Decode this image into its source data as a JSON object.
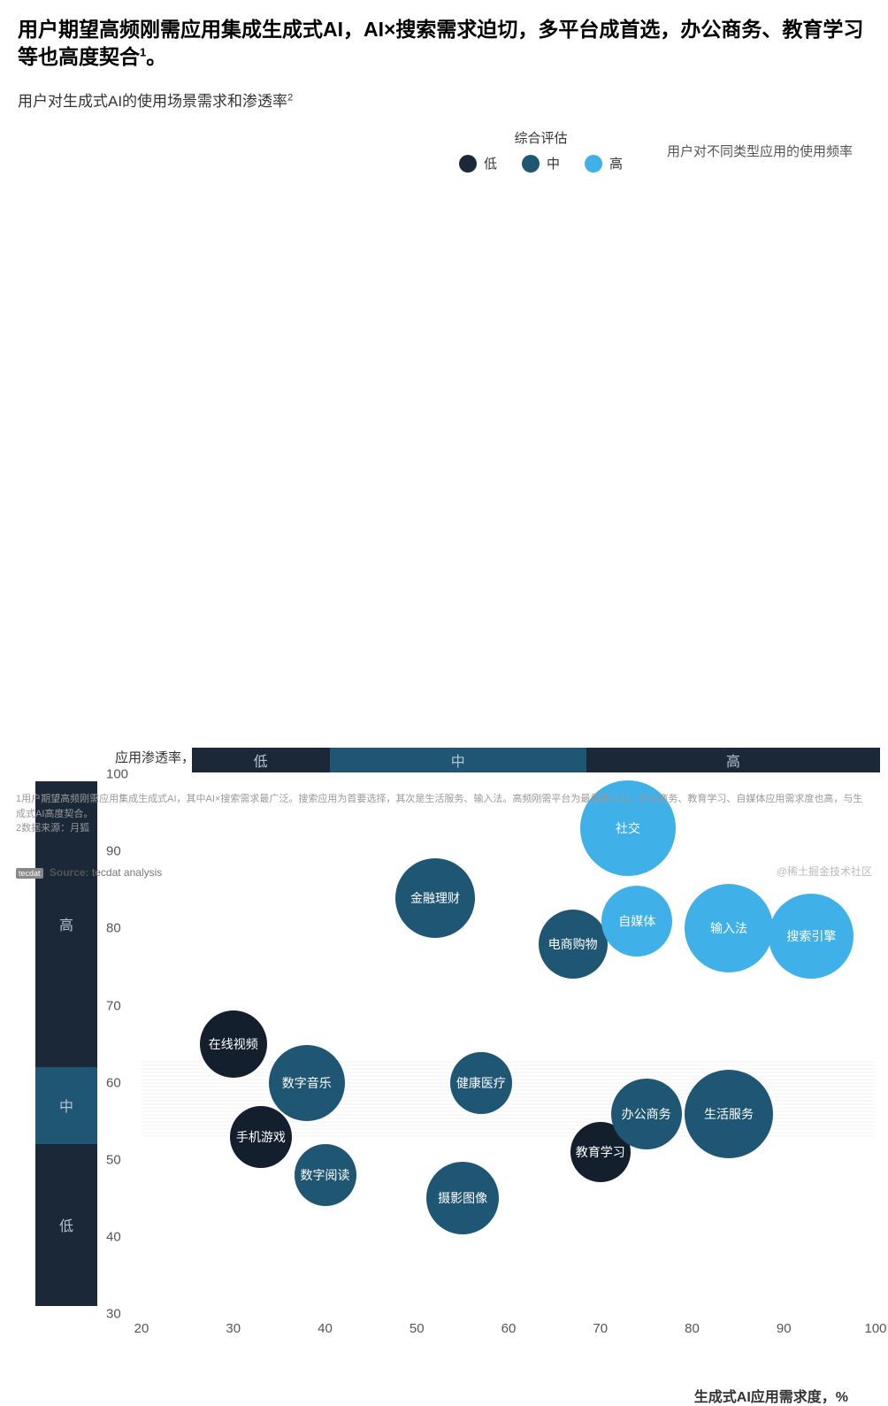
{
  "title": "用户期望高频刚需应用集成生成式AI，AI×搜索需求迫切，多平台成首选，办公商务、教育学习等也高度契合",
  "title_sup": "1",
  "subtitle": "用户对生成式AI的使用场景需求和渗透率",
  "subtitle_sup": "2",
  "legend": {
    "title": "综合评估",
    "items": [
      {
        "label": "低",
        "color": "#1a2838"
      },
      {
        "label": "中",
        "color": "#1e5673"
      },
      {
        "label": "高",
        "color": "#3fb0e8"
      }
    ],
    "right_label": "用户对不同类型应用的使用频率"
  },
  "chart": {
    "type": "bubble",
    "y_axis_title": "应用渗透率，%",
    "x_axis_title": "生成式AI应用需求度，%",
    "xlim": [
      20,
      100
    ],
    "ylim": [
      30,
      100
    ],
    "x_ticks": [
      20,
      30,
      40,
      50,
      60,
      70,
      80,
      90,
      100
    ],
    "y_ticks": [
      30,
      40,
      50,
      60,
      70,
      80,
      90,
      100
    ],
    "tick_fontsize": 15,
    "background_color": "#ffffff",
    "grid_band": {
      "y_from": 53,
      "y_to": 63,
      "color": "#e0e0e0"
    },
    "y_categories": [
      {
        "label": "高",
        "from": 63,
        "to": 100,
        "color": "#1a2838"
      },
      {
        "label": "中",
        "from": 53,
        "to": 63,
        "color": "#1e5673"
      },
      {
        "label": "低",
        "from": 32,
        "to": 53,
        "color": "#1a2838"
      }
    ],
    "x_categories": [
      {
        "label": "低",
        "from": 25,
        "to": 40,
        "color": "#1a2838"
      },
      {
        "label": "中",
        "from": 40,
        "to": 68,
        "color": "#1e5673"
      },
      {
        "label": "高",
        "from": 68,
        "to": 100,
        "color": "#1a2838"
      }
    ],
    "bubbles": [
      {
        "label": "在线视频",
        "x": 30,
        "y": 65,
        "size": 76,
        "color": "#141f2d"
      },
      {
        "label": "数字音乐",
        "x": 38,
        "y": 60,
        "size": 86,
        "color": "#1e5673"
      },
      {
        "label": "手机游戏",
        "x": 33,
        "y": 53,
        "size": 70,
        "color": "#141f2d"
      },
      {
        "label": "数字阅读",
        "x": 40,
        "y": 48,
        "size": 70,
        "color": "#1e5673"
      },
      {
        "label": "摄影图像",
        "x": 55,
        "y": 45,
        "size": 82,
        "color": "#1e5673"
      },
      {
        "label": "健康医疗",
        "x": 57,
        "y": 60,
        "size": 70,
        "color": "#1e5673"
      },
      {
        "label": "金融理财",
        "x": 52,
        "y": 84,
        "size": 90,
        "color": "#1e5673"
      },
      {
        "label": "教育学习",
        "x": 70,
        "y": 51,
        "size": 68,
        "color": "#141f2d"
      },
      {
        "label": "办公商务",
        "x": 75,
        "y": 56,
        "size": 80,
        "color": "#1e5673"
      },
      {
        "label": "生活服务",
        "x": 84,
        "y": 56,
        "size": 100,
        "color": "#1e5673"
      },
      {
        "label": "电商购物",
        "x": 67,
        "y": 78,
        "size": 78,
        "color": "#1e5673"
      },
      {
        "label": "自媒体",
        "x": 74,
        "y": 81,
        "size": 80,
        "color": "#3fb0e8"
      },
      {
        "label": "社交",
        "x": 73,
        "y": 93,
        "size": 108,
        "color": "#3fb0e8"
      },
      {
        "label": "输入法",
        "x": 84,
        "y": 80,
        "size": 100,
        "color": "#3fb0e8"
      },
      {
        "label": "搜索引擎",
        "x": 93,
        "y": 79,
        "size": 96,
        "color": "#3fb0e8"
      }
    ]
  },
  "footnotes": [
    "1用户期望高频刚需应用集成生成式AI，其中AI×搜索需求最广泛。搜索应用为首要选择，其次是生活服务、输入法。高频刚需平台为最重要入口。办公商务、教育学习、自媒体应用需求度也高，与生成式AI高度契合。",
    "2数据来源：月狐"
  ],
  "source_logo": "tecdat",
  "source_label": "Source:",
  "source_value": "tecdat analysis",
  "watermark": "@稀土掘金技术社区"
}
